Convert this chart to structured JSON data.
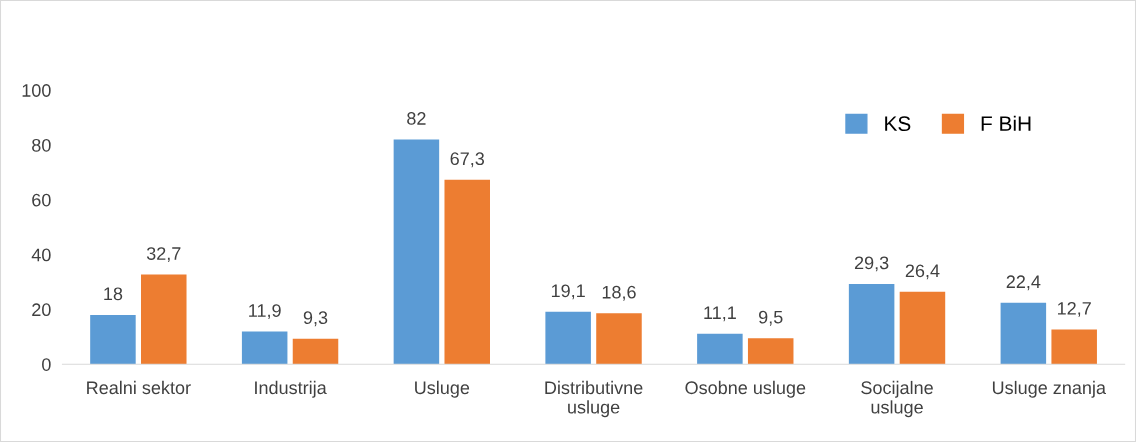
{
  "chart_data": {
    "type": "bar",
    "categories": [
      "Realni sektor",
      "Industrija",
      "Usluge",
      "Distributivne\nusluge",
      "Osobne usluge",
      "Socijalne\nusluge",
      "Usluge znanja"
    ],
    "series": [
      {
        "name": "KS",
        "color": "#5b9bd5",
        "values": [
          18,
          11.9,
          82,
          19.1,
          11.1,
          29.3,
          22.4
        ],
        "value_labels": [
          "18",
          "11,9",
          "82",
          "19,1",
          "11,1",
          "29,3",
          "22,4"
        ]
      },
      {
        "name": "F BiH",
        "color": "#ed7d31",
        "values": [
          32.7,
          9.3,
          67.3,
          18.6,
          9.5,
          26.4,
          12.7
        ],
        "value_labels": [
          "32,7",
          "9,3",
          "67,3",
          "18,6",
          "9,5",
          "26,4",
          "12,7"
        ]
      }
    ],
    "ylim": [
      0,
      100
    ],
    "yticks": [
      0,
      20,
      40,
      60,
      80,
      100
    ],
    "grid": false,
    "legend": "top right"
  }
}
